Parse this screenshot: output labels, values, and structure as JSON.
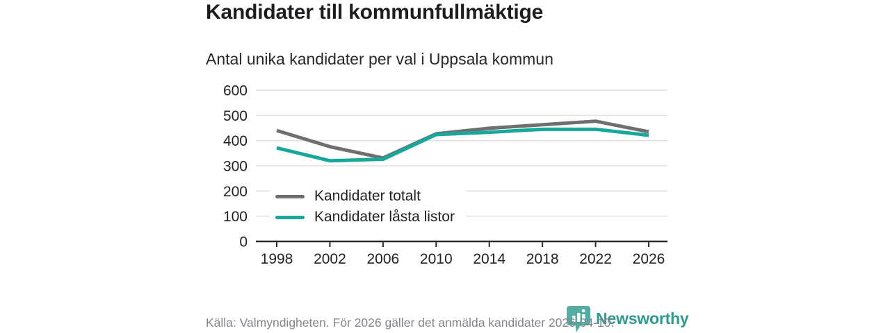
{
  "header": {
    "title": "Kandidater till kommunfullmäktige",
    "subtitle": "Antal unika kandidater per val i Uppsala kommun"
  },
  "footer": {
    "source_text": "Källa: Valmyndigheten. För 2026 gäller det anmälda kandidater 2026-04-10."
  },
  "branding": {
    "logo_text": "Newsworthy",
    "logo_icon": "bar-chart-speech-bubble-icon",
    "logo_text_color": "#2d9a91",
    "logo_icon_color": "#43a79c"
  },
  "colors": {
    "background": "#ffffff",
    "title": "#1d1d21",
    "subtitle": "#28282c",
    "axis": "#2b2b2e",
    "tick_label": "#222226",
    "gridline": "#dfdfdf",
    "footer_text": "#84858c"
  },
  "chart_data": {
    "type": "line",
    "title": "Kandidater till kommunfullmäktige",
    "subtitle": "Antal unika kandidater per val i Uppsala kommun",
    "categories": [
      "1998",
      "2002",
      "2006",
      "2010",
      "2014",
      "2018",
      "2022",
      "2026"
    ],
    "series": [
      {
        "name": "Kandidater totalt",
        "color": "#6f6f71",
        "values": [
          440,
          376,
          331,
          427,
          449,
          463,
          477,
          435
        ]
      },
      {
        "name": "Kandidater låsta listor",
        "color": "#16a89a",
        "values": [
          371,
          320,
          326,
          424,
          433,
          445,
          445,
          421
        ]
      }
    ],
    "xlabel": "",
    "ylabel": "",
    "ylim": [
      0,
      600
    ],
    "yticks": [
      0,
      100,
      200,
      300,
      400,
      500,
      600
    ],
    "grid": true,
    "legend_position": "inside-bottom-left"
  }
}
